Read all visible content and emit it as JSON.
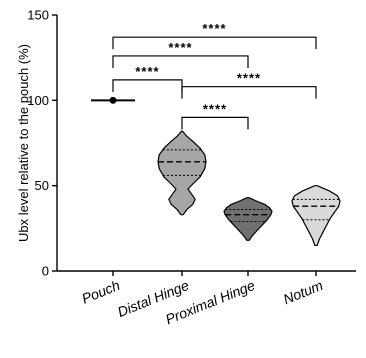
{
  "chart_data": {
    "type": "violin",
    "title": "",
    "xlabel": "",
    "ylabel": "Ubx level relative to the pouch (%)",
    "ylim": [
      0,
      150
    ],
    "yticks": [
      "0",
      "50",
      "100",
      "150"
    ],
    "categories": [
      "Pouch",
      "Distal Hinge",
      "Proximal Hinge",
      "Notum"
    ],
    "series": [
      {
        "category": "Pouch",
        "median": 100,
        "q1": 100,
        "q3": 100,
        "min": 100,
        "max": 100,
        "fill": "#000000",
        "density": [
          [
            100,
            1.0
          ]
        ]
      },
      {
        "category": "Distal Hinge",
        "median": 64,
        "q1": 56,
        "q3": 71,
        "min": 33,
        "max": 82,
        "fill": "#a6a6a6",
        "density": [
          [
            33,
            0.05
          ],
          [
            36,
            0.2
          ],
          [
            39,
            0.45
          ],
          [
            42,
            0.55
          ],
          [
            45,
            0.4
          ],
          [
            48,
            0.25
          ],
          [
            51,
            0.45
          ],
          [
            55,
            0.75
          ],
          [
            60,
            0.95
          ],
          [
            64,
            1.0
          ],
          [
            68,
            0.95
          ],
          [
            72,
            0.75
          ],
          [
            76,
            0.45
          ],
          [
            79,
            0.2
          ],
          [
            82,
            0.02
          ]
        ]
      },
      {
        "category": "Proximal Hinge",
        "median": 33,
        "q1": 29,
        "q3": 36,
        "min": 18,
        "max": 43,
        "fill": "#707070",
        "density": [
          [
            18,
            0.05
          ],
          [
            21,
            0.2
          ],
          [
            24,
            0.4
          ],
          [
            27,
            0.6
          ],
          [
            30,
            0.8
          ],
          [
            33,
            0.95
          ],
          [
            35,
            1.0
          ],
          [
            37,
            0.9
          ],
          [
            39,
            0.7
          ],
          [
            41,
            0.35
          ],
          [
            43,
            0.03
          ]
        ]
      },
      {
        "category": "Notum",
        "median": 38,
        "q1": 30,
        "q3": 42,
        "min": 15,
        "max": 50,
        "fill": "#d9d9d9",
        "density": [
          [
            15,
            0.05
          ],
          [
            19,
            0.15
          ],
          [
            23,
            0.3
          ],
          [
            27,
            0.45
          ],
          [
            31,
            0.6
          ],
          [
            35,
            0.8
          ],
          [
            38,
            0.95
          ],
          [
            41,
            1.0
          ],
          [
            44,
            0.9
          ],
          [
            47,
            0.55
          ],
          [
            50,
            0.05
          ]
        ]
      }
    ],
    "comparisons": [
      {
        "from": "Pouch",
        "to": "Notum",
        "label": "****",
        "y": 137
      },
      {
        "from": "Pouch",
        "to": "Proximal Hinge",
        "label": "****",
        "y": 126
      },
      {
        "from": "Pouch",
        "to": "Distal Hinge",
        "label": "****",
        "y": 112
      },
      {
        "from": "Distal Hinge",
        "to": "Notum",
        "label": "****",
        "y": 108
      },
      {
        "from": "Distal Hinge",
        "to": "Proximal Hinge",
        "label": "****",
        "y": 90
      }
    ]
  }
}
